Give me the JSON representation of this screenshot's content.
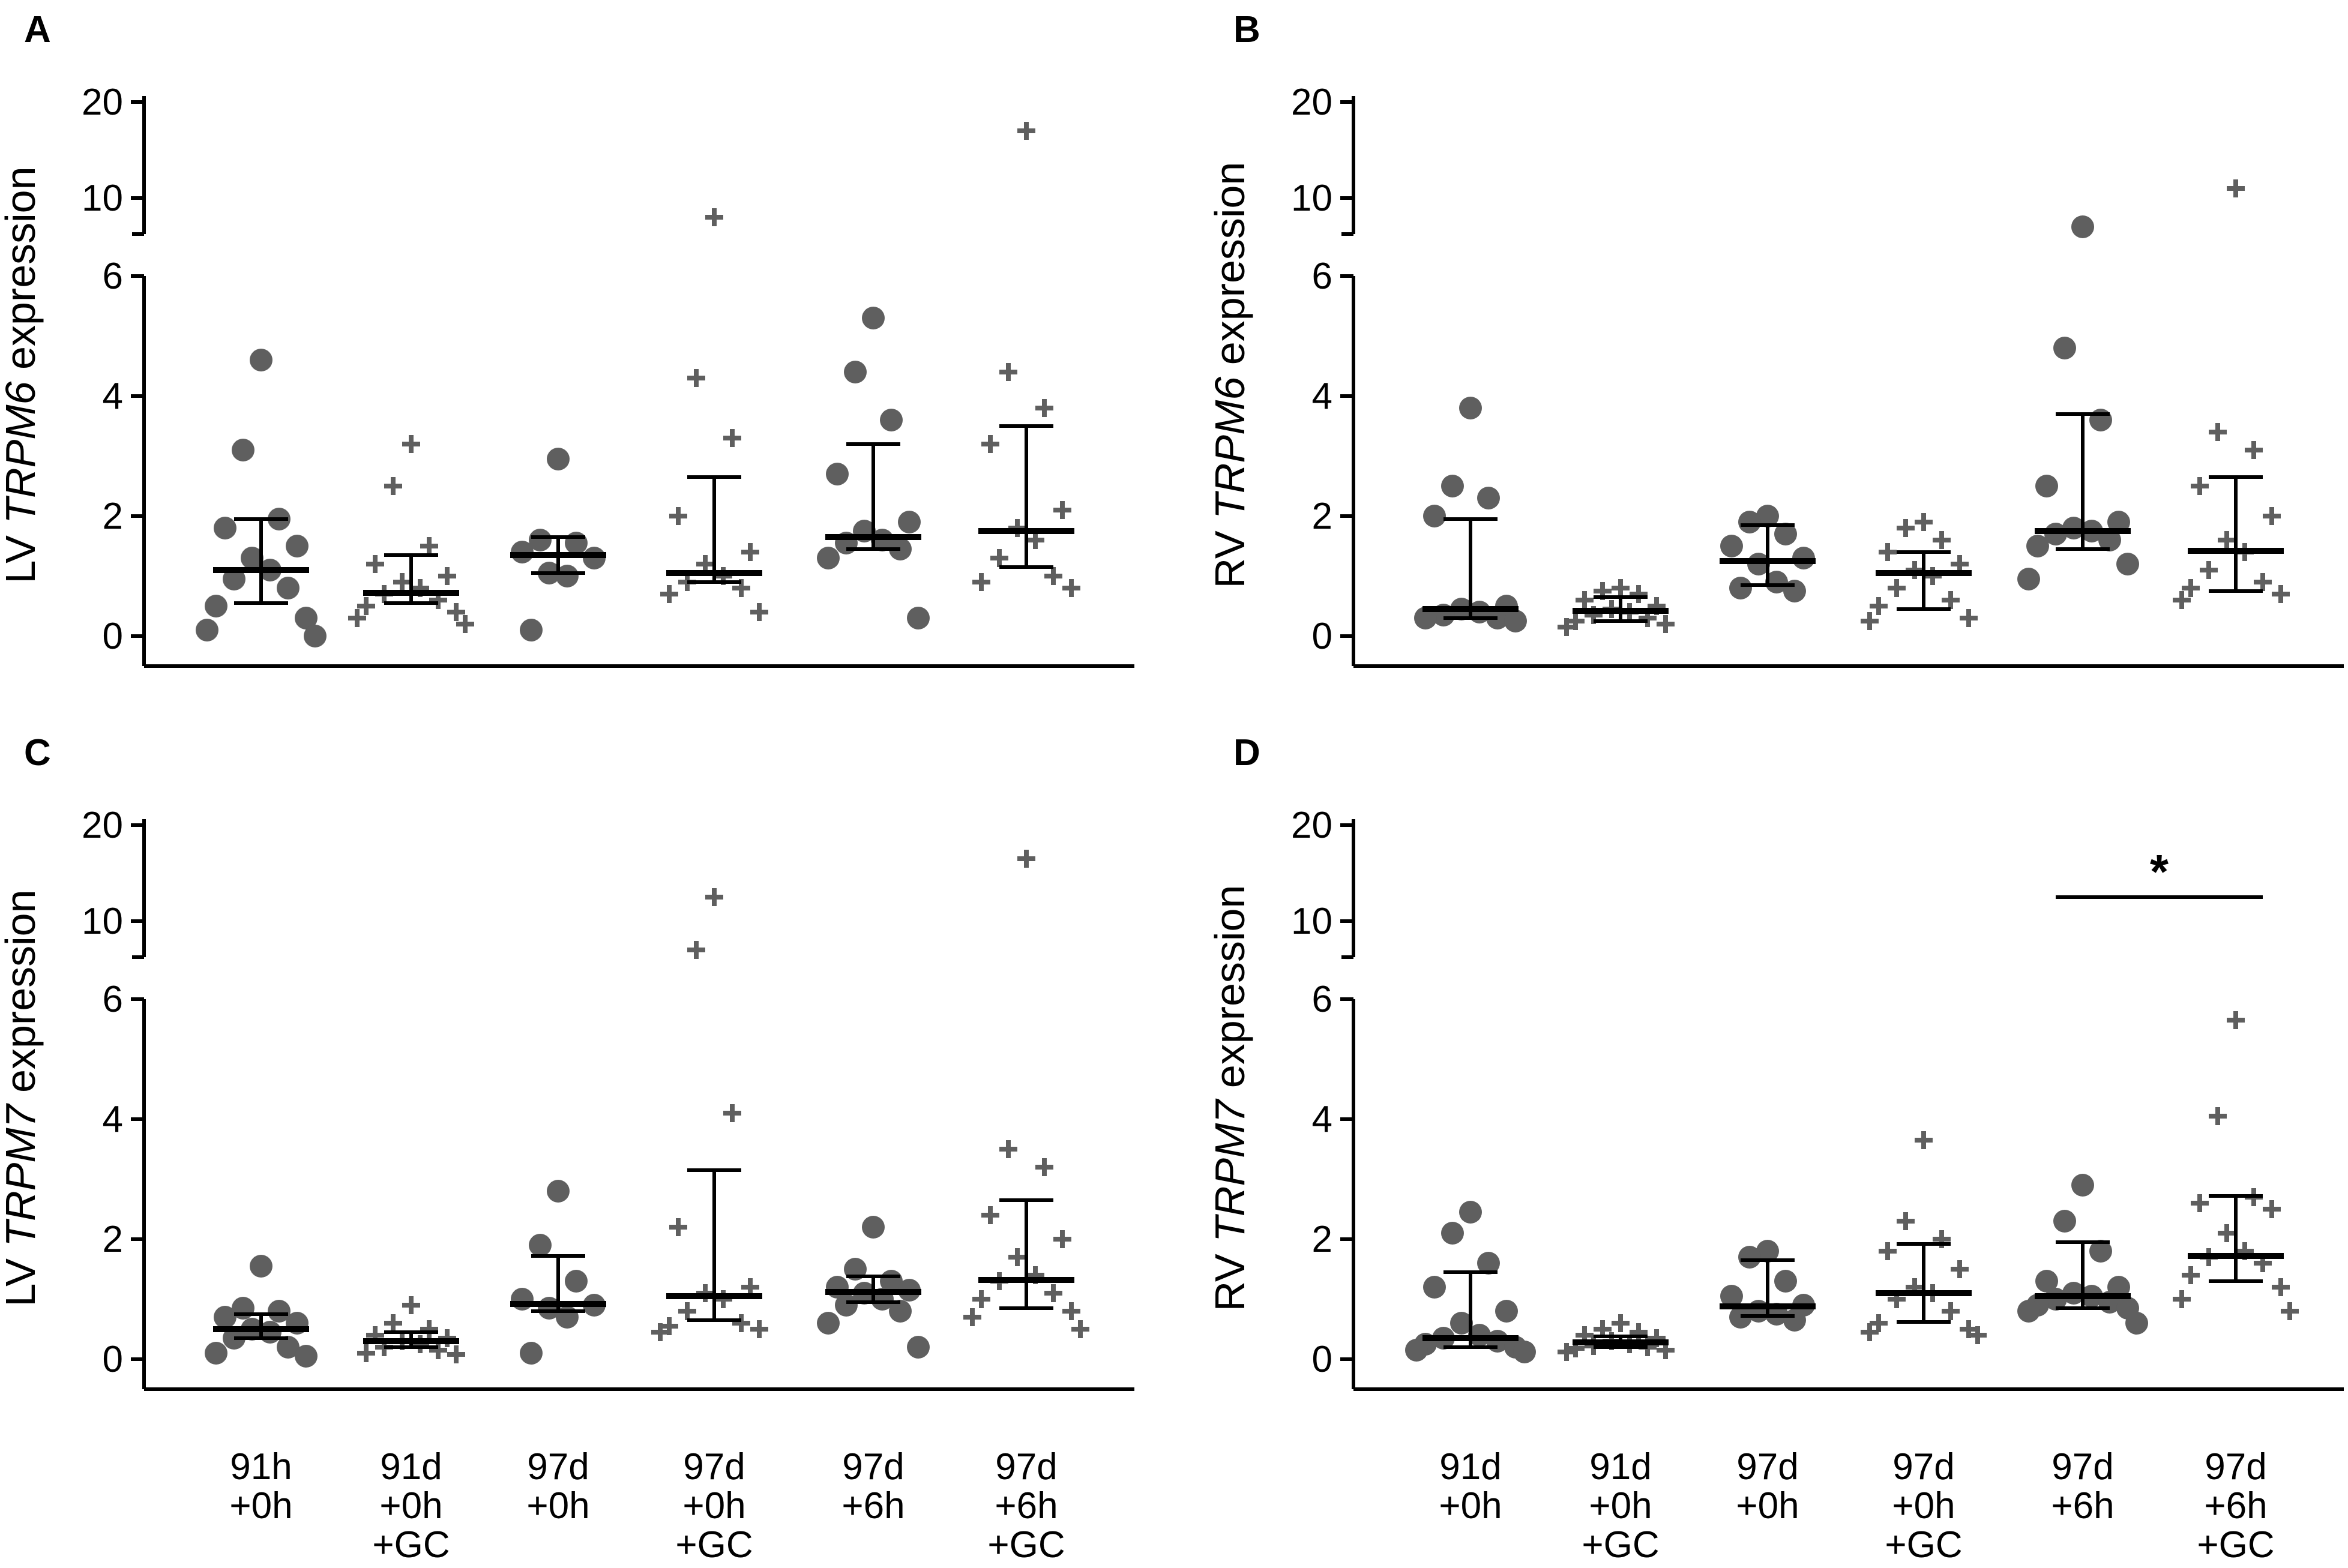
{
  "figure": {
    "title": "",
    "colors": {
      "point": "#5f5f5f",
      "line": "#000000",
      "background": "#ffffff"
    }
  },
  "chart_data": [
    {
      "panel": "A",
      "type": "scatter",
      "ylabel_prefix": "LV ",
      "ylabel_gene": "TRPM6",
      "ylabel_suffix": " expression",
      "y_segments": [
        {
          "range": [
            0,
            6
          ],
          "ticks": [
            0,
            2,
            4,
            6
          ]
        },
        {
          "range": [
            7,
            21
          ],
          "ticks": [
            10,
            20
          ]
        }
      ],
      "categories": [
        {
          "lines": [
            "91h",
            "+0h"
          ],
          "marker": "circle",
          "values": [
            4.6,
            3.1,
            1.95,
            1.8,
            1.5,
            1.3,
            1.1,
            0.95,
            0.8,
            0.5,
            0.3,
            0.1,
            0.0
          ],
          "median": 1.1,
          "q1": 0.55,
          "q3": 1.95
        },
        {
          "lines": [
            "91d",
            "+0h",
            "+GC"
          ],
          "marker": "cross",
          "values": [
            3.2,
            2.5,
            1.5,
            1.2,
            1.0,
            0.9,
            0.8,
            0.7,
            0.6,
            0.5,
            0.4,
            0.3,
            0.2
          ],
          "median": 0.72,
          "q1": 0.55,
          "q3": 1.35
        },
        {
          "lines": [
            "97d",
            "+0h"
          ],
          "marker": "circle",
          "values": [
            2.95,
            1.6,
            1.55,
            1.4,
            1.3,
            1.05,
            1.0,
            0.1
          ],
          "median": 1.35,
          "q1": 1.05,
          "q3": 1.65
        },
        {
          "lines": [
            "97d",
            "+0h",
            "+GC"
          ],
          "marker": "cross",
          "values": [
            8.0,
            4.3,
            3.3,
            2.0,
            1.4,
            1.2,
            1.0,
            0.9,
            0.8,
            0.7,
            0.4
          ],
          "median": 1.05,
          "q1": 0.9,
          "q3": 2.65
        },
        {
          "lines": [
            "97d",
            "+6h"
          ],
          "marker": "circle",
          "values": [
            5.3,
            4.4,
            3.6,
            2.7,
            1.9,
            1.75,
            1.6,
            1.55,
            1.45,
            1.3,
            0.3
          ],
          "median": 1.65,
          "q1": 1.45,
          "q3": 3.2
        },
        {
          "lines": [
            "97d",
            "+6h",
            "+GC"
          ],
          "marker": "cross",
          "values": [
            17.0,
            4.4,
            3.8,
            3.2,
            2.1,
            1.8,
            1.6,
            1.3,
            1.0,
            0.9,
            0.8
          ],
          "median": 1.75,
          "q1": 1.15,
          "q3": 3.5
        }
      ]
    },
    {
      "panel": "B",
      "type": "scatter",
      "ylabel_prefix": "RV ",
      "ylabel_gene": "TRPM6",
      "ylabel_suffix": " expression",
      "y_segments": [
        {
          "range": [
            0,
            6
          ],
          "ticks": [
            0,
            2,
            4,
            6
          ]
        },
        {
          "range": [
            7,
            21
          ],
          "ticks": [
            10,
            20
          ]
        }
      ],
      "categories": [
        {
          "lines": [
            "91d",
            "+0h"
          ],
          "marker": "circle",
          "values": [
            3.8,
            2.5,
            2.3,
            2.0,
            0.5,
            0.45,
            0.4,
            0.35,
            0.3,
            0.3,
            0.25
          ],
          "median": 0.45,
          "q1": 0.3,
          "q3": 1.95
        },
        {
          "lines": [
            "91d",
            "+0h",
            "+GC"
          ],
          "marker": "cross",
          "values": [
            0.8,
            0.75,
            0.7,
            0.6,
            0.5,
            0.45,
            0.4,
            0.35,
            0.3,
            0.25,
            0.2,
            0.15
          ],
          "median": 0.42,
          "q1": 0.25,
          "q3": 0.65
        },
        {
          "lines": [
            "97d",
            "+0h"
          ],
          "marker": "circle",
          "values": [
            2.0,
            1.9,
            1.7,
            1.5,
            1.3,
            1.2,
            0.9,
            0.8,
            0.75
          ],
          "median": 1.25,
          "q1": 0.85,
          "q3": 1.85
        },
        {
          "lines": [
            "97d",
            "+0h",
            "+GC"
          ],
          "marker": "cross",
          "values": [
            1.9,
            1.8,
            1.6,
            1.4,
            1.2,
            1.1,
            1.0,
            0.8,
            0.6,
            0.5,
            0.3,
            0.25
          ],
          "median": 1.05,
          "q1": 0.45,
          "q3": 1.4
        },
        {
          "lines": [
            "97d",
            "+6h"
          ],
          "marker": "circle",
          "values": [
            7.0,
            4.8,
            3.6,
            2.5,
            1.9,
            1.8,
            1.75,
            1.7,
            1.6,
            1.5,
            1.2,
            0.95
          ],
          "median": 1.75,
          "q1": 1.45,
          "q3": 3.7
        },
        {
          "lines": [
            "97d",
            "+6h",
            "+GC"
          ],
          "marker": "cross",
          "values": [
            11.0,
            3.4,
            3.1,
            2.5,
            2.0,
            1.6,
            1.4,
            1.1,
            0.9,
            0.8,
            0.7,
            0.6
          ],
          "median": 1.42,
          "q1": 0.75,
          "q3": 2.65
        }
      ]
    },
    {
      "panel": "C",
      "type": "scatter",
      "ylabel_prefix": "LV ",
      "ylabel_gene": "TRPM7",
      "ylabel_suffix": " expression",
      "y_segments": [
        {
          "range": [
            0,
            6
          ],
          "ticks": [
            0,
            2,
            4,
            6
          ]
        },
        {
          "range": [
            7,
            21
          ],
          "ticks": [
            10,
            20
          ]
        }
      ],
      "categories": [
        {
          "lines": [
            "91h",
            "+0h"
          ],
          "marker": "circle",
          "values": [
            1.55,
            0.85,
            0.8,
            0.7,
            0.6,
            0.5,
            0.45,
            0.35,
            0.2,
            0.1,
            0.05
          ],
          "median": 0.5,
          "q1": 0.35,
          "q3": 0.75
        },
        {
          "lines": [
            "91d",
            "+0h",
            "+GC"
          ],
          "marker": "cross",
          "values": [
            0.9,
            0.6,
            0.5,
            0.4,
            0.35,
            0.3,
            0.25,
            0.2,
            0.15,
            0.1,
            0.08
          ],
          "median": 0.3,
          "q1": 0.2,
          "q3": 0.45
        },
        {
          "lines": [
            "97d",
            "+0h"
          ],
          "marker": "circle",
          "values": [
            2.8,
            1.9,
            1.3,
            1.0,
            0.9,
            0.85,
            0.7,
            0.1
          ],
          "median": 0.92,
          "q1": 0.8,
          "q3": 1.72
        },
        {
          "lines": [
            "97d",
            "+0h",
            "+GC"
          ],
          "marker": "cross",
          "values": [
            12.5,
            7.0,
            4.1,
            2.2,
            1.2,
            1.1,
            1.0,
            0.8,
            0.6,
            0.55,
            0.5,
            0.45
          ],
          "median": 1.05,
          "q1": 0.65,
          "q3": 3.15
        },
        {
          "lines": [
            "97d",
            "+6h"
          ],
          "marker": "circle",
          "values": [
            2.2,
            1.5,
            1.3,
            1.2,
            1.15,
            1.1,
            1.0,
            0.9,
            0.8,
            0.6,
            0.2
          ],
          "median": 1.12,
          "q1": 0.95,
          "q3": 1.38
        },
        {
          "lines": [
            "97d",
            "+6h",
            "+GC"
          ],
          "marker": "cross",
          "values": [
            16.5,
            3.5,
            3.2,
            2.4,
            2.0,
            1.7,
            1.4,
            1.3,
            1.1,
            1.0,
            0.8,
            0.7,
            0.5
          ],
          "median": 1.32,
          "q1": 0.85,
          "q3": 2.65
        }
      ]
    },
    {
      "panel": "D",
      "type": "scatter",
      "ylabel_prefix": "RV ",
      "ylabel_gene": "TRPM7",
      "ylabel_suffix": " expression",
      "y_segments": [
        {
          "range": [
            0,
            6
          ],
          "ticks": [
            0,
            2,
            4,
            6
          ]
        },
        {
          "range": [
            7,
            21
          ],
          "ticks": [
            10,
            20
          ]
        }
      ],
      "categories": [
        {
          "lines": [
            "91d",
            "+0h"
          ],
          "marker": "circle",
          "values": [
            2.45,
            2.1,
            1.6,
            1.2,
            0.8,
            0.6,
            0.4,
            0.35,
            0.3,
            0.25,
            0.2,
            0.15,
            0.12
          ],
          "median": 0.35,
          "q1": 0.2,
          "q3": 1.45
        },
        {
          "lines": [
            "91d",
            "+0h",
            "+GC"
          ],
          "marker": "cross",
          "values": [
            0.6,
            0.5,
            0.45,
            0.4,
            0.35,
            0.3,
            0.25,
            0.22,
            0.2,
            0.18,
            0.15,
            0.12
          ],
          "median": 0.28,
          "q1": 0.2,
          "q3": 0.38
        },
        {
          "lines": [
            "97d",
            "+0h"
          ],
          "marker": "circle",
          "values": [
            1.8,
            1.7,
            1.3,
            1.05,
            0.9,
            0.8,
            0.75,
            0.7,
            0.65
          ],
          "median": 0.88,
          "q1": 0.72,
          "q3": 1.65
        },
        {
          "lines": [
            "97d",
            "+0h",
            "+GC"
          ],
          "marker": "cross",
          "values": [
            3.65,
            2.3,
            2.0,
            1.8,
            1.5,
            1.2,
            1.1,
            1.0,
            0.8,
            0.6,
            0.5,
            0.45,
            0.4
          ],
          "median": 1.1,
          "q1": 0.62,
          "q3": 1.92
        },
        {
          "lines": [
            "97d",
            "+6h"
          ],
          "marker": "circle",
          "values": [
            2.9,
            2.3,
            1.8,
            1.3,
            1.2,
            1.1,
            1.05,
            1.0,
            0.95,
            0.9,
            0.85,
            0.8,
            0.6
          ],
          "median": 1.05,
          "q1": 0.85,
          "q3": 1.95
        },
        {
          "lines": [
            "97d",
            "+6h",
            "+GC"
          ],
          "marker": "cross",
          "values": [
            5.65,
            4.05,
            2.7,
            2.6,
            2.5,
            2.1,
            1.8,
            1.7,
            1.6,
            1.4,
            1.2,
            1.0,
            0.8
          ],
          "median": 1.72,
          "q1": 1.3,
          "q3": 2.72
        }
      ],
      "significance": {
        "from_category": 4,
        "to_category": 5,
        "label": "*"
      }
    }
  ]
}
